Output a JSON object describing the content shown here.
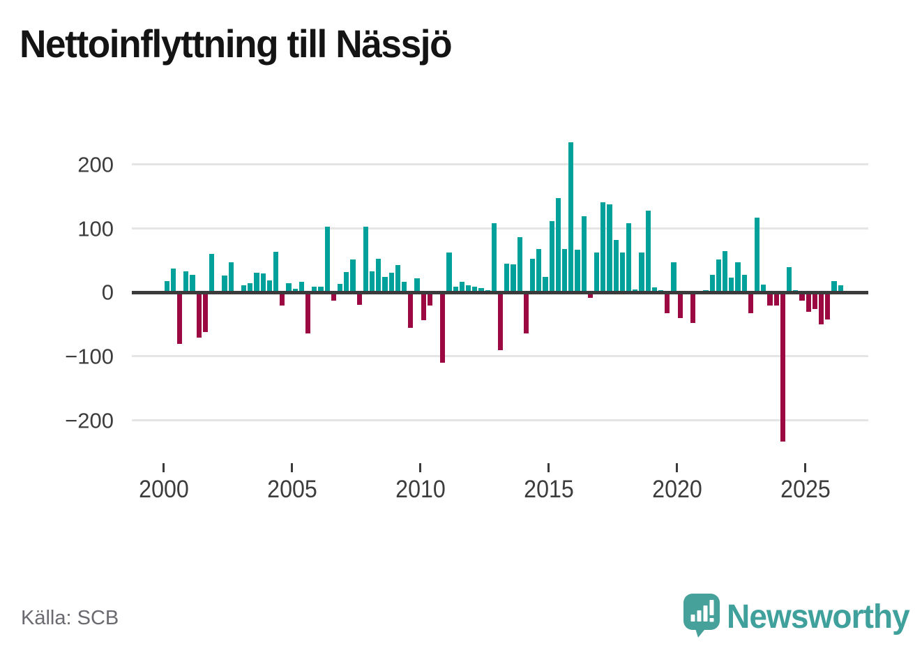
{
  "title": "Nettoinflyttning till Nässjö",
  "source": "Källa: SCB",
  "branding": {
    "wordmark": "Newsworthy",
    "logo_icon": "speech-bubble-bar-chart-icon",
    "brand_color": "#3FA09C"
  },
  "chart_data": {
    "type": "bar",
    "title": "Nettoinflyttning till Nässjö",
    "frequency": "quarterly",
    "period_start": "2000 Q1",
    "period_end": "2026 Q2",
    "values": [
      18,
      37,
      -80,
      33,
      27,
      -71,
      -62,
      60,
      0,
      26,
      47,
      0,
      11,
      14,
      31,
      30,
      19,
      64,
      -21,
      14,
      6,
      17,
      -64,
      9,
      9,
      103,
      -13,
      13,
      32,
      52,
      -19,
      103,
      33,
      53,
      24,
      31,
      43,
      17,
      -55,
      22,
      -43,
      -20,
      0,
      -110,
      62,
      9,
      17,
      11,
      9,
      7,
      4,
      108,
      -90,
      45,
      44,
      86,
      -64,
      53,
      68,
      24,
      111,
      148,
      68,
      235,
      67,
      119,
      -8,
      62,
      141,
      138,
      82,
      62,
      108,
      5,
      62,
      128,
      8,
      4,
      -32,
      47,
      -40,
      0,
      -48,
      0,
      3,
      27,
      51,
      65,
      23,
      47,
      27,
      -33,
      117,
      12,
      -20,
      -20,
      -233,
      40,
      4,
      -13,
      -30,
      -26,
      -50,
      -42,
      18,
      11
    ],
    "x_tick_labels": [
      "2000",
      "2005",
      "2010",
      "2015",
      "2020",
      "2025"
    ],
    "x_tick_quarter_indices": [
      0,
      20,
      40,
      60,
      80,
      100
    ],
    "y_ticks": [
      200,
      100,
      0,
      -100,
      -200
    ],
    "y_tick_labels": [
      "200",
      "100",
      "0",
      "−100",
      "−200"
    ],
    "ylim": [
      -250,
      260
    ],
    "grid": "horizontal",
    "legend": "none",
    "positive_color": "#00A19A",
    "negative_color": "#9B0842"
  }
}
